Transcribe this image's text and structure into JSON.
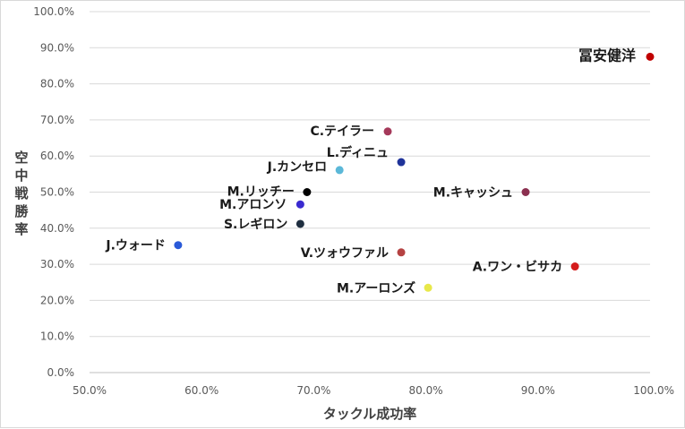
{
  "chart_data": {
    "type": "scatter",
    "title": "",
    "xlabel": "タックル成功率",
    "ylabel": "空中戦勝率",
    "xlim": [
      0.5,
      1.0
    ],
    "ylim": [
      0.0,
      1.0
    ],
    "x_ticks": [
      "50.0%",
      "60.0%",
      "70.0%",
      "80.0%",
      "90.0%",
      "100.0%"
    ],
    "y_ticks": [
      "0.0%",
      "10.0%",
      "20.0%",
      "30.0%",
      "40.0%",
      "50.0%",
      "60.0%",
      "70.0%",
      "80.0%",
      "90.0%",
      "100.0%"
    ],
    "grid": "horizontal",
    "legend": "none",
    "points": [
      {
        "label": "冨安健洋",
        "x": 1.0,
        "y": 0.875,
        "color": "#c00000"
      },
      {
        "label": "C.テイラー",
        "x": 0.766,
        "y": 0.668,
        "color": "#a5395a"
      },
      {
        "label": "L.ディニュ",
        "x": 0.778,
        "y": 0.583,
        "color": "#1f3399"
      },
      {
        "label": "J.カンセロ",
        "x": 0.723,
        "y": 0.561,
        "color": "#5bb8d8"
      },
      {
        "label": "M.リッチー",
        "x": 0.694,
        "y": 0.5,
        "color": "#000000"
      },
      {
        "label": "M.キャッシュ",
        "x": 0.889,
        "y": 0.5,
        "color": "#8b3050"
      },
      {
        "label": "M.アロンソ",
        "x": 0.688,
        "y": 0.466,
        "color": "#3a2ad0"
      },
      {
        "label": "S.レギロン",
        "x": 0.688,
        "y": 0.412,
        "color": "#1f2f40"
      },
      {
        "label": "J.ウォード",
        "x": 0.579,
        "y": 0.353,
        "color": "#2a5ad8"
      },
      {
        "label": "V.ツォウファル",
        "x": 0.778,
        "y": 0.333,
        "color": "#b54242"
      },
      {
        "label": "A.ワン・ビサカ",
        "x": 0.933,
        "y": 0.294,
        "color": "#d41c1c"
      },
      {
        "label": "M.アーロンズ",
        "x": 0.802,
        "y": 0.235,
        "color": "#e8e84a"
      }
    ]
  }
}
